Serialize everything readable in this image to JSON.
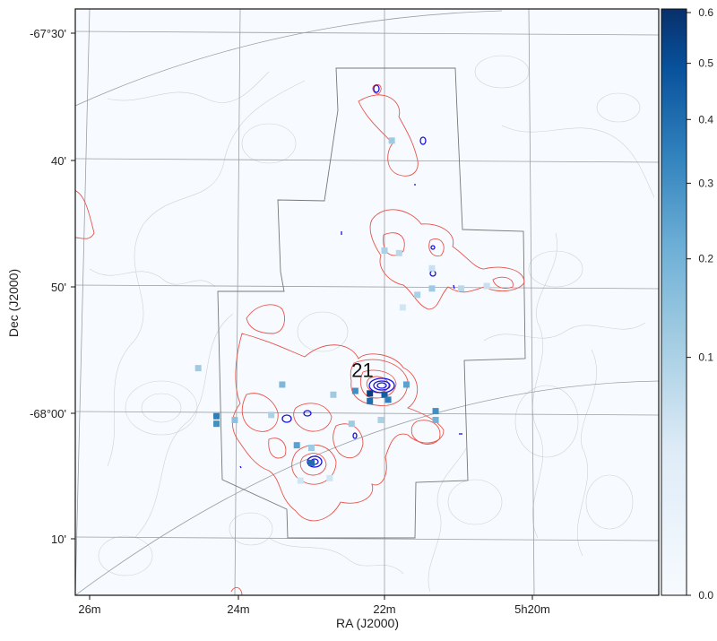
{
  "chart_data": {
    "type": "heatmap",
    "title": "",
    "xlabel": "RA (J2000)",
    "ylabel": "Dec (J2000)",
    "x_tick_labels": [
      "26m",
      "24m",
      "22m",
      "5h20m"
    ],
    "y_tick_labels": [
      "-67°30'",
      "40'",
      "50'",
      "-68°00'",
      "10'"
    ],
    "colorbar": {
      "scale": "sqrt",
      "range": [
        0.0,
        0.6
      ],
      "tick_values": [
        0.0,
        0.1,
        0.2,
        0.3,
        0.4,
        0.5,
        0.6
      ],
      "tick_labels": [
        "0.0",
        "0.1",
        "0.2",
        "0.3",
        "0.4",
        "0.5",
        "0.6"
      ],
      "colormap": "Blues"
    },
    "annotations": [
      {
        "text": "21",
        "ra_min": 22.3,
        "dec_arcmin": -57.2
      }
    ],
    "pixels": [
      {
        "ra_min": 21.9,
        "dec_arcmin": -38.5,
        "value": 0.12
      },
      {
        "ra_min": 22.0,
        "dec_arcmin": -47.2,
        "value": 0.1
      },
      {
        "ra_min": 21.8,
        "dec_arcmin": -47.4,
        "value": 0.08
      },
      {
        "ra_min": 21.35,
        "dec_arcmin": -48.6,
        "value": 0.06
      },
      {
        "ra_min": 21.35,
        "dec_arcmin": -50.2,
        "value": 0.12
      },
      {
        "ra_min": 21.55,
        "dec_arcmin": -50.7,
        "value": 0.1
      },
      {
        "ra_min": 20.95,
        "dec_arcmin": -50.2,
        "value": 0.08
      },
      {
        "ra_min": 20.6,
        "dec_arcmin": -50.0,
        "value": 0.06
      },
      {
        "ra_min": 21.75,
        "dec_arcmin": -51.7,
        "value": 0.05
      },
      {
        "ra_min": 24.55,
        "dec_arcmin": -56.5,
        "value": 0.12
      },
      {
        "ra_min": 23.4,
        "dec_arcmin": -57.8,
        "value": 0.18
      },
      {
        "ra_min": 22.4,
        "dec_arcmin": -58.3,
        "value": 0.3
      },
      {
        "ra_min": 22.2,
        "dec_arcmin": -58.5,
        "value": 0.55
      },
      {
        "ra_min": 22.0,
        "dec_arcmin": -58.6,
        "value": 0.45
      },
      {
        "ra_min": 21.7,
        "dec_arcmin": -57.8,
        "value": 0.25
      },
      {
        "ra_min": 22.2,
        "dec_arcmin": -59.1,
        "value": 0.4
      },
      {
        "ra_min": 21.95,
        "dec_arcmin": -59.0,
        "value": 0.35
      },
      {
        "ra_min": 21.3,
        "dec_arcmin": -59.9,
        "value": 0.3
      },
      {
        "ra_min": 21.3,
        "dec_arcmin": -60.6,
        "value": 0.2
      },
      {
        "ra_min": 22.7,
        "dec_arcmin": -58.6,
        "value": 0.12
      },
      {
        "ra_min": 24.3,
        "dec_arcmin": -60.3,
        "value": 0.35
      },
      {
        "ra_min": 24.3,
        "dec_arcmin": -60.9,
        "value": 0.3
      },
      {
        "ra_min": 24.05,
        "dec_arcmin": -60.6,
        "value": 0.15
      },
      {
        "ra_min": 23.55,
        "dec_arcmin": -60.2,
        "value": 0.1
      },
      {
        "ra_min": 23.2,
        "dec_arcmin": -62.6,
        "value": 0.25
      },
      {
        "ra_min": 23.0,
        "dec_arcmin": -62.8,
        "value": 0.12
      },
      {
        "ra_min": 23.0,
        "dec_arcmin": -64.0,
        "value": 0.4
      },
      {
        "ra_min": 22.75,
        "dec_arcmin": -65.2,
        "value": 0.05
      },
      {
        "ra_min": 23.15,
        "dec_arcmin": -65.4,
        "value": 0.05
      },
      {
        "ra_min": 22.45,
        "dec_arcmin": -60.9,
        "value": 0.12
      },
      {
        "ra_min": 22.05,
        "dec_arcmin": -60.6,
        "value": 0.1
      }
    ]
  }
}
